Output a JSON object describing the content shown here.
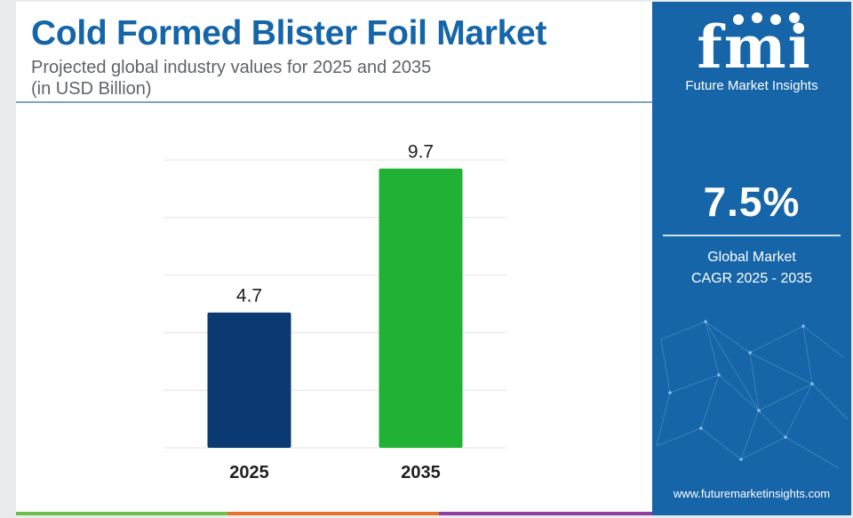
{
  "header": {
    "title": "Cold Formed Blister Foil Market",
    "subtitle_line1": "Projected global industry values for 2025 and 2035",
    "subtitle_line2": "(in USD Billion)"
  },
  "sidebar": {
    "logo_text": "fmi",
    "brand_name": "Future Market Insights",
    "cagr_value": "7.5%",
    "cagr_label_line1": "Global Market",
    "cagr_label_line2": "CAGR 2025 - 2035",
    "website": "www.futuremarketinsights.com"
  },
  "colors": {
    "title": "#1565a9",
    "sidebar_bg": "#1665a8",
    "stripe": [
      "#6cc04a",
      "#e8712b",
      "#8e3fa0"
    ]
  },
  "chart_data": {
    "type": "bar",
    "title": "",
    "xlabel": "",
    "ylabel": "",
    "categories": [
      "2025",
      "2035"
    ],
    "values": [
      4.7,
      9.7
    ],
    "bar_colors": [
      "#0b3a73",
      "#20b135"
    ],
    "data_labels": [
      "4.7",
      "9.7"
    ],
    "ylim": [
      0,
      10
    ],
    "grid": true,
    "legend": "none"
  }
}
